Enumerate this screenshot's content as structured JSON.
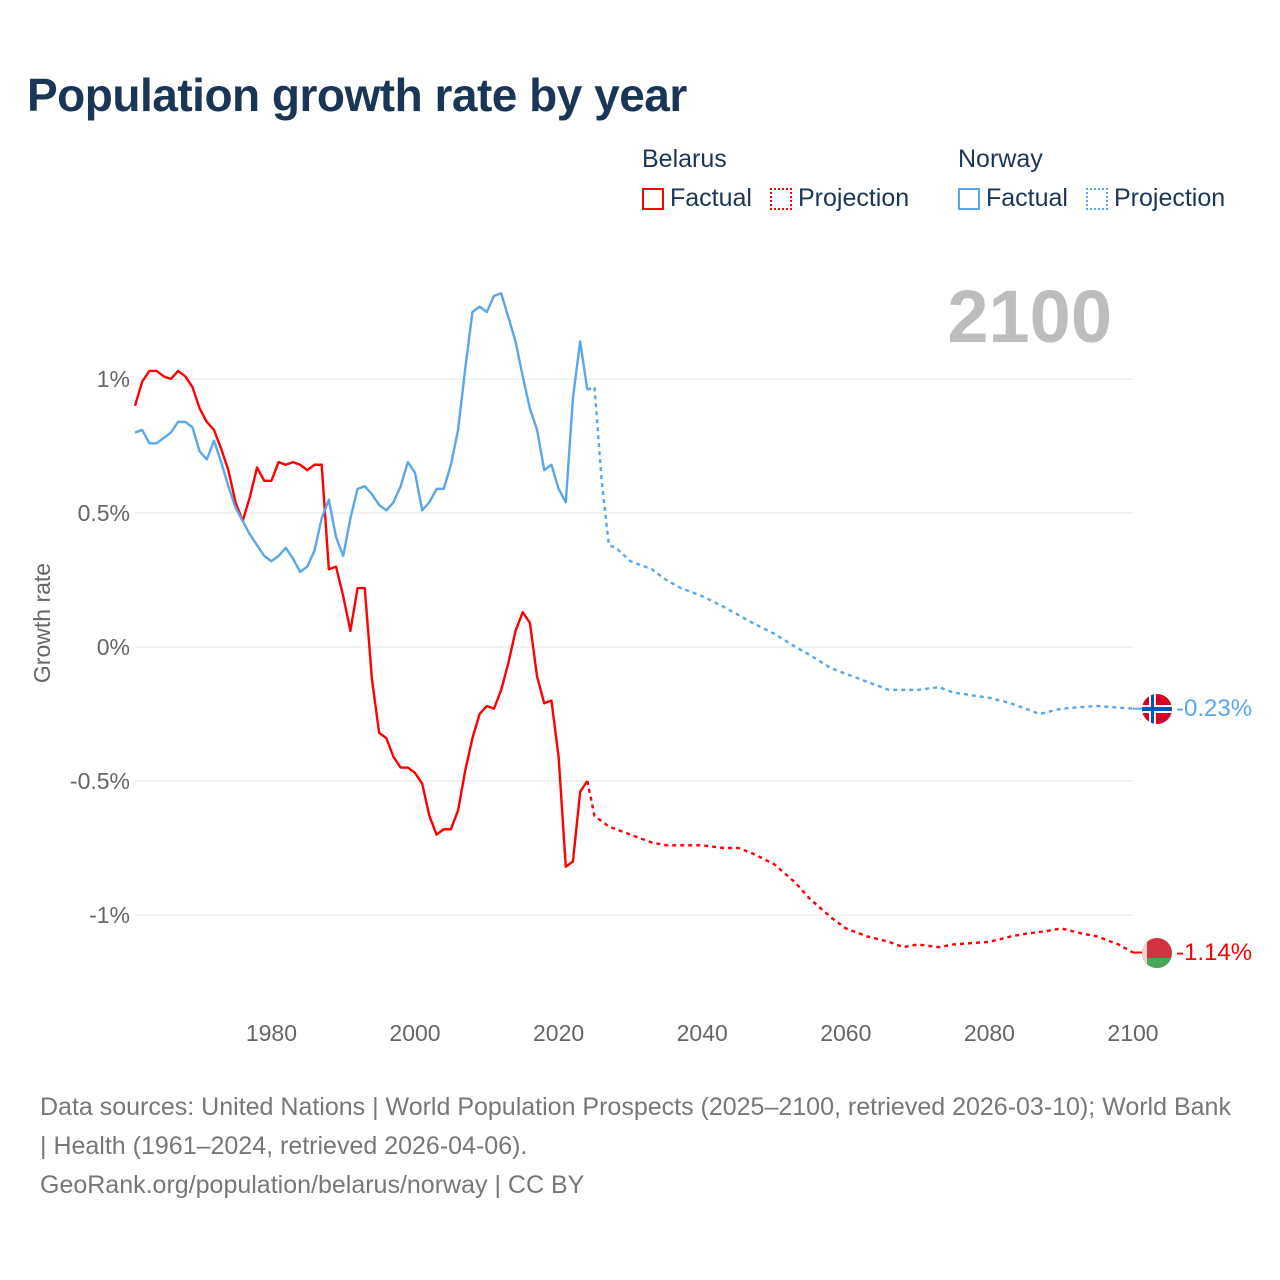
{
  "title": "Population growth rate by year",
  "legend": {
    "groups": [
      {
        "name": "Belarus",
        "factual_label": "Factual",
        "projection_label": "Projection",
        "color": "#ff0000"
      },
      {
        "name": "Norway",
        "factual_label": "Factual",
        "projection_label": "Projection",
        "color": "#5ba6ea"
      }
    ]
  },
  "footer": {
    "sources": "Data sources: United Nations | World Population Prospects (2025–2100, retrieved 2026-03-10); World Bank | Health (1961–2024, retrieved 2026-04-06).",
    "credit": "GeoRank.org/population/belarus/norway | CC BY"
  },
  "chart_data": {
    "type": "line",
    "title": "Population growth rate by year",
    "current_year_label": "2100",
    "xlabel": "",
    "ylabel": "Growth rate",
    "xlim": [
      1961,
      2100
    ],
    "ylim": [
      -1.3,
      1.45
    ],
    "x_ticks": [
      1980,
      2000,
      2020,
      2040,
      2060,
      2080,
      2100
    ],
    "y_ticks": [
      {
        "value": 1,
        "label": "1%"
      },
      {
        "value": 0.5,
        "label": "0.5%"
      },
      {
        "value": 0,
        "label": "0%"
      },
      {
        "value": -0.5,
        "label": "-0.5%"
      },
      {
        "value": -1,
        "label": "-1%"
      }
    ],
    "grid": true,
    "legend_position": "top-right",
    "series": [
      {
        "name": "Belarus",
        "color": "#ff0000",
        "end_label": "-1.14%",
        "flag": "belarus-flag",
        "factual_start_year": 1961,
        "factual": [
          0.9,
          0.99,
          1.03,
          1.03,
          1.01,
          1.0,
          1.03,
          1.01,
          0.97,
          0.89,
          0.84,
          0.81,
          0.74,
          0.66,
          0.54,
          0.47,
          0.56,
          0.67,
          0.62,
          0.62,
          0.69,
          0.68,
          0.69,
          0.68,
          0.66,
          0.68,
          0.68,
          0.29,
          0.3,
          0.19,
          0.06,
          0.22,
          0.22,
          -0.12,
          -0.32,
          -0.34,
          -0.41,
          -0.45,
          -0.45,
          -0.47,
          -0.51,
          -0.63,
          -0.7,
          -0.68,
          -0.68,
          -0.61,
          -0.46,
          -0.34,
          -0.25,
          -0.22,
          -0.23,
          -0.16,
          -0.06,
          0.06,
          0.13,
          0.09,
          -0.11,
          -0.21,
          -0.2,
          -0.41,
          -0.82,
          -0.8,
          -0.54,
          -0.5
        ],
        "projection": [
          [
            2024,
            -0.5
          ],
          [
            2025,
            -0.63
          ],
          [
            2027,
            -0.67
          ],
          [
            2030,
            -0.7
          ],
          [
            2033,
            -0.73
          ],
          [
            2035,
            -0.74
          ],
          [
            2040,
            -0.74
          ],
          [
            2043,
            -0.75
          ],
          [
            2045,
            -0.75
          ],
          [
            2047,
            -0.77
          ],
          [
            2050,
            -0.81
          ],
          [
            2053,
            -0.88
          ],
          [
            2055,
            -0.94
          ],
          [
            2058,
            -1.01
          ],
          [
            2060,
            -1.05
          ],
          [
            2063,
            -1.08
          ],
          [
            2066,
            -1.1
          ],
          [
            2068,
            -1.12
          ],
          [
            2070,
            -1.11
          ],
          [
            2073,
            -1.12
          ],
          [
            2075,
            -1.11
          ],
          [
            2080,
            -1.1
          ],
          [
            2083,
            -1.08
          ],
          [
            2085,
            -1.07
          ],
          [
            2088,
            -1.06
          ],
          [
            2090,
            -1.05
          ],
          [
            2093,
            -1.07
          ],
          [
            2095,
            -1.08
          ],
          [
            2098,
            -1.11
          ],
          [
            2100,
            -1.14
          ]
        ]
      },
      {
        "name": "Norway",
        "color": "#5ba6ea",
        "end_label": "-0.23%",
        "flag": "norway-flag",
        "factual_start_year": 1961,
        "factual": [
          0.8,
          0.81,
          0.76,
          0.76,
          0.78,
          0.8,
          0.84,
          0.84,
          0.82,
          0.73,
          0.7,
          0.77,
          0.69,
          0.6,
          0.52,
          0.47,
          0.42,
          0.38,
          0.34,
          0.32,
          0.34,
          0.37,
          0.33,
          0.28,
          0.3,
          0.36,
          0.48,
          0.55,
          0.41,
          0.34,
          0.48,
          0.59,
          0.6,
          0.57,
          0.53,
          0.51,
          0.54,
          0.6,
          0.69,
          0.65,
          0.51,
          0.54,
          0.59,
          0.59,
          0.68,
          0.81,
          1.04,
          1.25,
          1.27,
          1.25,
          1.31,
          1.32,
          1.23,
          1.14,
          1.01,
          0.89,
          0.81,
          0.66,
          0.68,
          0.59,
          0.54,
          0.93,
          1.14,
          0.96
        ],
        "projection": [
          [
            2024,
            0.96
          ],
          [
            2025,
            0.97
          ],
          [
            2026,
            0.62
          ],
          [
            2027,
            0.38
          ],
          [
            2028,
            0.37
          ],
          [
            2030,
            0.32
          ],
          [
            2033,
            0.29
          ],
          [
            2035,
            0.25
          ],
          [
            2037,
            0.22
          ],
          [
            2040,
            0.19
          ],
          [
            2043,
            0.15
          ],
          [
            2045,
            0.12
          ],
          [
            2047,
            0.09
          ],
          [
            2050,
            0.05
          ],
          [
            2053,
            0.0
          ],
          [
            2055,
            -0.03
          ],
          [
            2058,
            -0.08
          ],
          [
            2060,
            -0.1
          ],
          [
            2063,
            -0.13
          ],
          [
            2066,
            -0.16
          ],
          [
            2070,
            -0.16
          ],
          [
            2073,
            -0.15
          ],
          [
            2075,
            -0.17
          ],
          [
            2080,
            -0.19
          ],
          [
            2083,
            -0.21
          ],
          [
            2087,
            -0.25
          ],
          [
            2090,
            -0.23
          ],
          [
            2095,
            -0.22
          ],
          [
            2100,
            -0.23
          ]
        ]
      }
    ]
  }
}
